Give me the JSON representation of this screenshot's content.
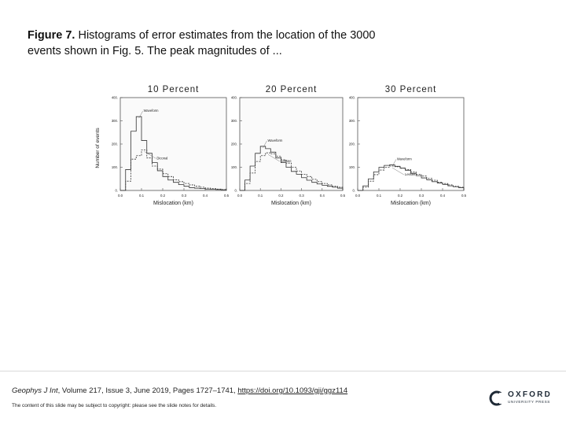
{
  "caption": {
    "label": "Figure 7.",
    "text": "Histograms of error estimates from the location of the 3000 events shown in Fig. 5. The peak magnitudes of ..."
  },
  "chart_data": [
    {
      "type": "histogram",
      "title": "10 Percent",
      "xlabel": "Mislocation (km)",
      "ylabel": "Number of events",
      "xticks": [
        "0.0",
        "0.1",
        "0.2",
        "0.3",
        "0.4",
        "0.5"
      ],
      "yticks": [
        "0.",
        "100.",
        "200.",
        "300.",
        "400."
      ],
      "xlim": [
        0,
        0.5
      ],
      "ylim": [
        0,
        400
      ],
      "series": [
        {
          "name": "Waveform",
          "values": [
            0,
            90,
            255,
            318,
            215,
            160,
            120,
            85,
            60,
            45,
            35,
            25,
            18,
            12,
            10,
            8,
            6,
            5,
            4,
            3
          ]
        },
        {
          "name": "Diconal",
          "values": [
            0,
            40,
            135,
            150,
            175,
            140,
            105,
            92,
            72,
            60,
            46,
            38,
            30,
            24,
            18,
            14,
            10,
            8,
            6,
            4
          ]
        }
      ]
    },
    {
      "type": "histogram",
      "title": "20 Percent",
      "xlabel": "Mislocation (km)",
      "ylabel": "",
      "xticks": [
        "0.0",
        "0.1",
        "0.2",
        "0.3",
        "0.4",
        "0.5"
      ],
      "yticks": [
        "0.",
        "100.",
        "200.",
        "300.",
        "400."
      ],
      "xlim": [
        0,
        0.5
      ],
      "ylim": [
        0,
        400
      ],
      "series": [
        {
          "name": "Waveform",
          "values": [
            0,
            45,
            105,
            160,
            190,
            180,
            165,
            140,
            120,
            100,
            82,
            70,
            55,
            44,
            35,
            28,
            22,
            18,
            14,
            10
          ]
        },
        {
          "name": "Lessee",
          "values": [
            0,
            30,
            75,
            125,
            150,
            162,
            158,
            148,
            132,
            118,
            100,
            84,
            70,
            60,
            48,
            38,
            30,
            24,
            18,
            14
          ]
        }
      ]
    },
    {
      "type": "histogram",
      "title": "30 Percent",
      "xlabel": "Mislocation (km)",
      "ylabel": "",
      "xticks": [
        "0.0",
        "0.1",
        "0.2",
        "0.3",
        "0.4",
        "0.5"
      ],
      "yticks": [
        "0.",
        "100.",
        "200.",
        "300.",
        "400."
      ],
      "xlim": [
        0,
        0.5
      ],
      "ylim": [
        0,
        400
      ],
      "series": [
        {
          "name": "Waveform",
          "values": [
            0,
            20,
            50,
            80,
            100,
            108,
            110,
            104,
            96,
            86,
            74,
            64,
            54,
            46,
            38,
            32,
            26,
            20,
            16,
            12
          ]
        },
        {
          "name": "Lessee",
          "values": [
            0,
            14,
            40,
            68,
            88,
            100,
            105,
            102,
            96,
            90,
            80,
            70,
            62,
            52,
            44,
            36,
            30,
            24,
            18,
            14
          ]
        }
      ]
    }
  ],
  "footer": {
    "journal": "Geophys J Int",
    "citation": ", Volume 217, Issue 3, June 2019, Pages 1727–1741,",
    "doi": "https://doi.org/10.1093/gji/ggz114",
    "copyright": "The content of this slide may be subject to copyright: please see the slide notes for details."
  },
  "logo": {
    "name": "OXFORD",
    "press": "UNIVERSITY PRESS"
  }
}
